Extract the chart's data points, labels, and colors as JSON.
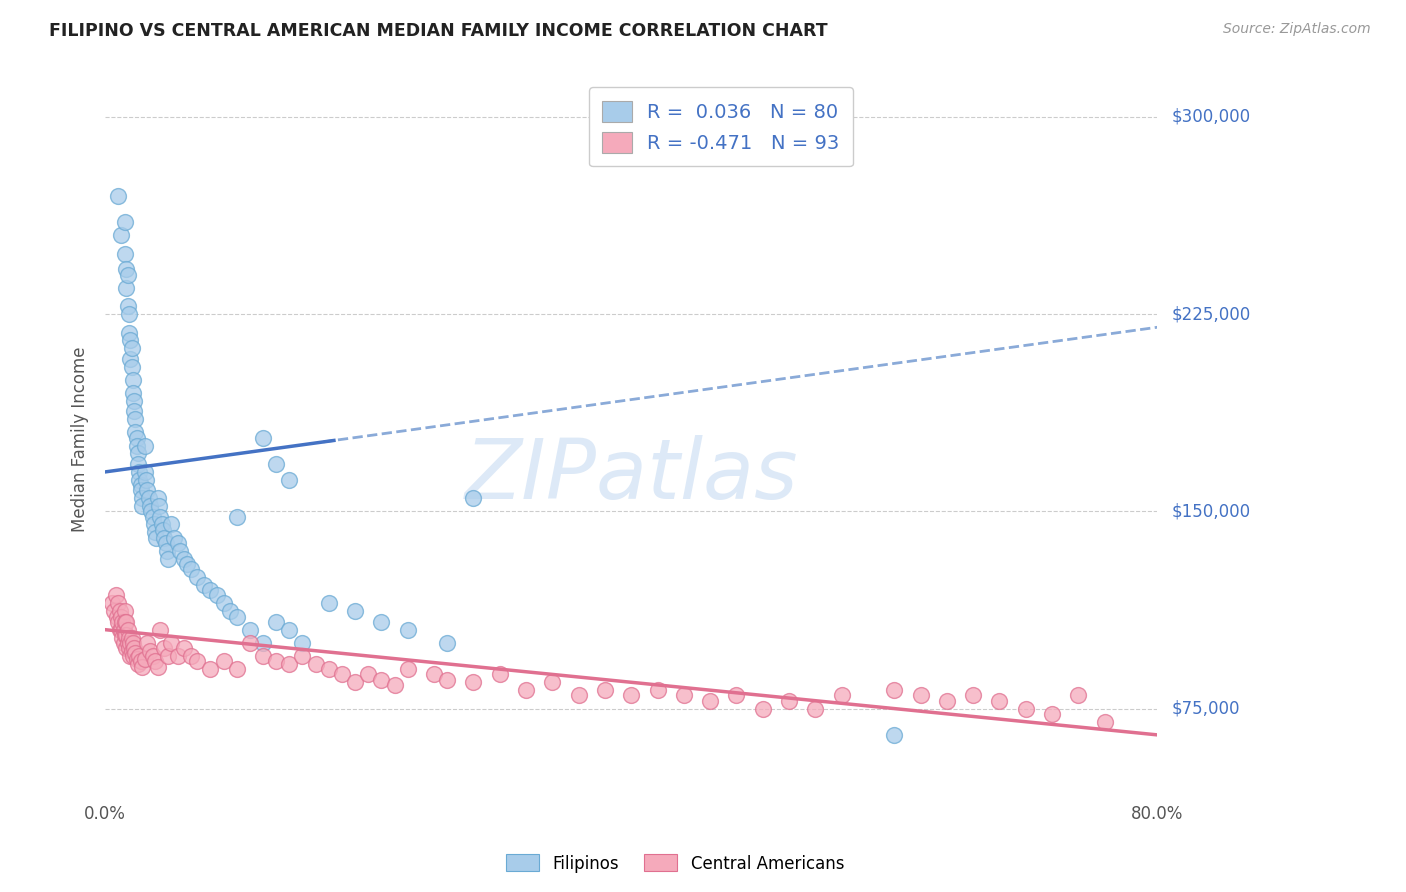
{
  "title": "FILIPINO VS CENTRAL AMERICAN MEDIAN FAMILY INCOME CORRELATION CHART",
  "source": "Source: ZipAtlas.com",
  "ylabel": "Median Family Income",
  "xmin": 0.0,
  "xmax": 0.8,
  "ymin": 40000,
  "ymax": 315000,
  "yticks": [
    75000,
    150000,
    225000,
    300000
  ],
  "ytick_labels": [
    "$75,000",
    "$150,000",
    "$225,000",
    "$300,000"
  ],
  "filipino_color": "#A8CCEA",
  "filipino_edge": "#6AAAD4",
  "central_american_color": "#F5AABB",
  "central_american_edge": "#E07090",
  "trendline_filipino_color": "#4472C4",
  "trendline_filipino_dash_color": "#8AAAD8",
  "trendline_central_color": "#E07090",
  "R_filipino": 0.036,
  "N_filipino": 80,
  "R_central": -0.471,
  "N_central": 93,
  "axis_color": "#4472C4",
  "grid_color": "#CCCCCC",
  "legend_label_1": "Filipinos",
  "legend_label_2": "Central Americans",
  "filipino_x": [
    0.01,
    0.012,
    0.015,
    0.015,
    0.016,
    0.016,
    0.017,
    0.017,
    0.018,
    0.018,
    0.019,
    0.019,
    0.02,
    0.02,
    0.021,
    0.021,
    0.022,
    0.022,
    0.023,
    0.023,
    0.024,
    0.024,
    0.025,
    0.025,
    0.026,
    0.026,
    0.027,
    0.027,
    0.028,
    0.028,
    0.03,
    0.03,
    0.031,
    0.032,
    0.033,
    0.034,
    0.035,
    0.036,
    0.037,
    0.038,
    0.039,
    0.04,
    0.041,
    0.042,
    0.043,
    0.044,
    0.045,
    0.046,
    0.047,
    0.048,
    0.05,
    0.052,
    0.055,
    0.057,
    0.06,
    0.062,
    0.065,
    0.07,
    0.075,
    0.08,
    0.085,
    0.09,
    0.095,
    0.1,
    0.11,
    0.12,
    0.13,
    0.14,
    0.15,
    0.17,
    0.19,
    0.21,
    0.23,
    0.26,
    0.28,
    0.1,
    0.12,
    0.13,
    0.14,
    0.6
  ],
  "filipino_y": [
    270000,
    255000,
    260000,
    248000,
    242000,
    235000,
    228000,
    240000,
    225000,
    218000,
    215000,
    208000,
    212000,
    205000,
    200000,
    195000,
    192000,
    188000,
    185000,
    180000,
    178000,
    175000,
    172000,
    168000,
    165000,
    162000,
    160000,
    158000,
    155000,
    152000,
    175000,
    165000,
    162000,
    158000,
    155000,
    152000,
    150000,
    148000,
    145000,
    142000,
    140000,
    155000,
    152000,
    148000,
    145000,
    143000,
    140000,
    138000,
    135000,
    132000,
    145000,
    140000,
    138000,
    135000,
    132000,
    130000,
    128000,
    125000,
    122000,
    120000,
    118000,
    115000,
    112000,
    110000,
    105000,
    100000,
    108000,
    105000,
    100000,
    115000,
    112000,
    108000,
    105000,
    100000,
    155000,
    148000,
    178000,
    168000,
    162000,
    65000
  ],
  "central_x": [
    0.005,
    0.007,
    0.008,
    0.009,
    0.01,
    0.01,
    0.011,
    0.011,
    0.012,
    0.012,
    0.013,
    0.013,
    0.014,
    0.014,
    0.015,
    0.015,
    0.015,
    0.016,
    0.016,
    0.016,
    0.017,
    0.017,
    0.018,
    0.018,
    0.019,
    0.019,
    0.02,
    0.02,
    0.021,
    0.021,
    0.022,
    0.023,
    0.024,
    0.025,
    0.026,
    0.027,
    0.028,
    0.03,
    0.032,
    0.034,
    0.036,
    0.038,
    0.04,
    0.042,
    0.045,
    0.048,
    0.05,
    0.055,
    0.06,
    0.065,
    0.07,
    0.08,
    0.09,
    0.1,
    0.11,
    0.12,
    0.13,
    0.14,
    0.15,
    0.16,
    0.17,
    0.18,
    0.19,
    0.2,
    0.21,
    0.22,
    0.23,
    0.25,
    0.26,
    0.28,
    0.3,
    0.32,
    0.34,
    0.36,
    0.38,
    0.4,
    0.42,
    0.44,
    0.46,
    0.48,
    0.5,
    0.52,
    0.54,
    0.56,
    0.6,
    0.62,
    0.64,
    0.66,
    0.68,
    0.7,
    0.72,
    0.74,
    0.76
  ],
  "central_y": [
    115000,
    112000,
    118000,
    110000,
    108000,
    115000,
    112000,
    105000,
    110000,
    105000,
    108000,
    102000,
    105000,
    100000,
    112000,
    108000,
    103000,
    108000,
    103000,
    98000,
    105000,
    100000,
    102000,
    98000,
    100000,
    95000,
    102000,
    97000,
    100000,
    95000,
    98000,
    96000,
    94000,
    92000,
    95000,
    93000,
    91000,
    94000,
    100000,
    97000,
    95000,
    93000,
    91000,
    105000,
    98000,
    95000,
    100000,
    95000,
    98000,
    95000,
    93000,
    90000,
    93000,
    90000,
    100000,
    95000,
    93000,
    92000,
    95000,
    92000,
    90000,
    88000,
    85000,
    88000,
    86000,
    84000,
    90000,
    88000,
    86000,
    85000,
    88000,
    82000,
    85000,
    80000,
    82000,
    80000,
    82000,
    80000,
    78000,
    80000,
    75000,
    78000,
    75000,
    80000,
    82000,
    80000,
    78000,
    80000,
    78000,
    75000,
    73000,
    80000,
    70000
  ]
}
